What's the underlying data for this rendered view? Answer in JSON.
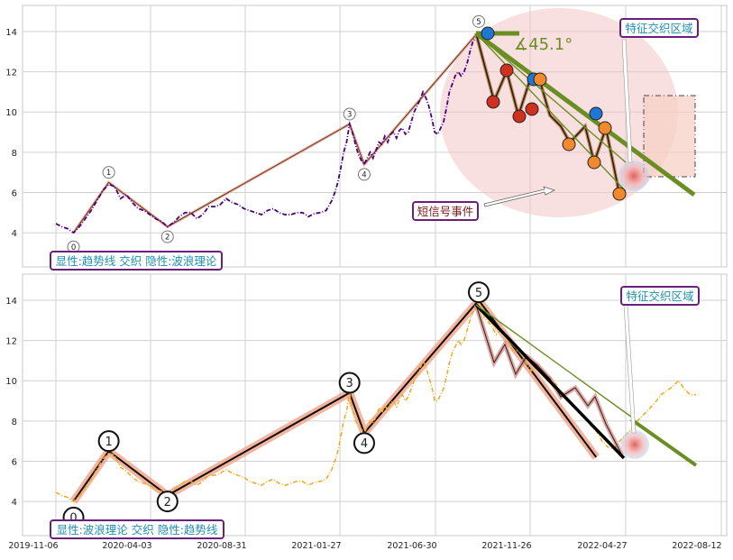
{
  "chart_data": [
    {
      "type": "line",
      "title": "",
      "ylim": [
        2.3,
        15.3
      ],
      "yticks": [
        4,
        6,
        8,
        10,
        12,
        14
      ],
      "grid": true,
      "price_series": {
        "color": "#4b0082",
        "points": [
          [
            0,
            4.45
          ],
          [
            4,
            4.3
          ],
          [
            8,
            4.2
          ],
          [
            12,
            4.0
          ],
          [
            16,
            4.3
          ],
          [
            20,
            4.7
          ],
          [
            24,
            5.1
          ],
          [
            28,
            5.6
          ],
          [
            32,
            6.1
          ],
          [
            36,
            6.4
          ],
          [
            40,
            6.3
          ],
          [
            44,
            5.7
          ],
          [
            48,
            5.9
          ],
          [
            52,
            5.5
          ],
          [
            56,
            5.2
          ],
          [
            60,
            5.1
          ],
          [
            64,
            4.9
          ],
          [
            68,
            4.7
          ],
          [
            72,
            4.55
          ],
          [
            76,
            4.3
          ],
          [
            80,
            4.5
          ],
          [
            84,
            4.8
          ],
          [
            88,
            5.0
          ],
          [
            92,
            5.0
          ],
          [
            96,
            4.7
          ],
          [
            100,
            4.9
          ],
          [
            104,
            5.3
          ],
          [
            108,
            5.3
          ],
          [
            112,
            5.4
          ],
          [
            116,
            5.7
          ],
          [
            120,
            5.5
          ],
          [
            124,
            5.4
          ],
          [
            128,
            5.2
          ],
          [
            132,
            5.1
          ],
          [
            136,
            5.0
          ],
          [
            140,
            4.9
          ],
          [
            144,
            5.1
          ],
          [
            148,
            5.2
          ],
          [
            152,
            5.0
          ],
          [
            156,
            4.9
          ],
          [
            160,
            4.9
          ],
          [
            164,
            5.0
          ],
          [
            168,
            5.0
          ],
          [
            172,
            4.8
          ],
          [
            176,
            4.95
          ],
          [
            180,
            5.0
          ],
          [
            184,
            5.1
          ],
          [
            188,
            5.6
          ],
          [
            190,
            6.0
          ],
          [
            192,
            6.5
          ],
          [
            194,
            7.2
          ],
          [
            196,
            8.0
          ],
          [
            198,
            8.5
          ],
          [
            200,
            9.4
          ],
          [
            202,
            9.0
          ],
          [
            204,
            8.4
          ],
          [
            206,
            7.9
          ],
          [
            208,
            7.6
          ],
          [
            210,
            7.4
          ],
          [
            212,
            7.7
          ],
          [
            214,
            8.0
          ],
          [
            216,
            7.7
          ],
          [
            218,
            8.1
          ],
          [
            220,
            8.5
          ],
          [
            222,
            8.4
          ],
          [
            224,
            8.8
          ],
          [
            226,
            8.5
          ],
          [
            228,
            8.9
          ],
          [
            230,
            9.0
          ],
          [
            232,
            8.7
          ],
          [
            234,
            9.1
          ],
          [
            236,
            9.2
          ],
          [
            238,
            8.9
          ],
          [
            240,
            9.0
          ],
          [
            242,
            9.5
          ],
          [
            244,
            10.0
          ],
          [
            246,
            10.3
          ],
          [
            248,
            10.6
          ],
          [
            250,
            11.0
          ],
          [
            252,
            10.7
          ],
          [
            254,
            10.3
          ],
          [
            256,
            9.7
          ],
          [
            258,
            9.0
          ],
          [
            260,
            8.9
          ],
          [
            262,
            9.2
          ],
          [
            264,
            9.5
          ],
          [
            266,
            10.2
          ],
          [
            268,
            11.0
          ],
          [
            270,
            11.4
          ],
          [
            272,
            11.8
          ],
          [
            274,
            12.0
          ],
          [
            276,
            11.8
          ],
          [
            278,
            12.0
          ],
          [
            280,
            12.4
          ],
          [
            282,
            13.0
          ],
          [
            284,
            13.5
          ],
          [
            286,
            13.7
          ],
          [
            288,
            13.9
          ]
        ]
      },
      "trend_line": [
        [
          12,
          4.0
        ],
        [
          36,
          6.5
        ],
        [
          76,
          4.3
        ],
        [
          200,
          9.4
        ],
        [
          210,
          7.4
        ],
        [
          288,
          14.0
        ]
      ],
      "wave_labels": [
        {
          "label": "0",
          "x": 12,
          "y": 3.3
        },
        {
          "label": "1",
          "x": 36,
          "y": 7.0
        },
        {
          "label": "2",
          "x": 76,
          "y": 3.8
        },
        {
          "label": "3",
          "x": 200,
          "y": 9.9
        },
        {
          "label": "4",
          "x": 210,
          "y": 6.9
        },
        {
          "label": "5",
          "x": 288,
          "y": 14.5
        }
      ],
      "annotations": {
        "angle_label": "∡45.1°",
        "event_label": "短信号事件",
        "zone_label": "特征交织区域",
        "legend_label": "显性:趋势线 交织 隐性:波浪理论"
      }
    },
    {
      "type": "line",
      "title": "",
      "ylim": [
        2.3,
        15.3
      ],
      "yticks": [
        4,
        6,
        8,
        10,
        12,
        14
      ],
      "grid": true,
      "xticks": [
        "2019-11-06",
        "2020-04-03",
        "2020-08-31",
        "2021-01-27",
        "2021-06-30",
        "2021-11-26",
        "2022-04-27",
        "2022-08-12"
      ],
      "price_series": {
        "color": "#f2a91c",
        "points": [
          [
            0,
            4.45
          ],
          [
            4,
            4.3
          ],
          [
            8,
            4.2
          ],
          [
            12,
            4.0
          ],
          [
            16,
            4.3
          ],
          [
            20,
            4.7
          ],
          [
            24,
            5.1
          ],
          [
            28,
            5.6
          ],
          [
            32,
            6.1
          ],
          [
            36,
            6.4
          ],
          [
            40,
            6.3
          ],
          [
            44,
            5.7
          ],
          [
            48,
            5.5
          ],
          [
            52,
            5.2
          ],
          [
            56,
            5.0
          ],
          [
            60,
            4.9
          ],
          [
            64,
            4.8
          ],
          [
            68,
            4.6
          ],
          [
            72,
            4.5
          ],
          [
            76,
            4.4
          ],
          [
            80,
            4.6
          ],
          [
            84,
            4.8
          ],
          [
            88,
            5.0
          ],
          [
            92,
            5.0
          ],
          [
            96,
            4.8
          ],
          [
            100,
            5.0
          ],
          [
            104,
            5.3
          ],
          [
            108,
            5.3
          ],
          [
            112,
            5.4
          ],
          [
            116,
            5.6
          ],
          [
            120,
            5.4
          ],
          [
            124,
            5.3
          ],
          [
            128,
            5.2
          ],
          [
            132,
            5.0
          ],
          [
            136,
            4.9
          ],
          [
            140,
            4.8
          ],
          [
            144,
            5.0
          ],
          [
            148,
            5.1
          ],
          [
            152,
            4.9
          ],
          [
            156,
            4.8
          ],
          [
            160,
            4.9
          ],
          [
            164,
            5.0
          ],
          [
            168,
            5.0
          ],
          [
            172,
            4.8
          ],
          [
            176,
            4.95
          ],
          [
            180,
            5.0
          ],
          [
            184,
            5.1
          ],
          [
            188,
            5.6
          ],
          [
            190,
            6.0
          ],
          [
            192,
            6.5
          ],
          [
            194,
            7.2
          ],
          [
            196,
            8.0
          ],
          [
            198,
            8.5
          ],
          [
            200,
            9.4
          ],
          [
            202,
            8.6
          ],
          [
            204,
            8.0
          ],
          [
            206,
            7.8
          ],
          [
            208,
            7.6
          ],
          [
            210,
            7.4
          ],
          [
            212,
            7.7
          ],
          [
            214,
            8.0
          ],
          [
            216,
            7.9
          ],
          [
            218,
            8.2
          ],
          [
            220,
            8.6
          ],
          [
            222,
            8.4
          ],
          [
            224,
            8.8
          ],
          [
            226,
            8.5
          ],
          [
            228,
            8.9
          ],
          [
            230,
            9.0
          ],
          [
            232,
            8.7
          ],
          [
            234,
            9.1
          ],
          [
            236,
            9.3
          ],
          [
            238,
            9.0
          ],
          [
            240,
            9.2
          ],
          [
            242,
            9.6
          ],
          [
            244,
            10.0
          ],
          [
            246,
            10.3
          ],
          [
            248,
            10.6
          ],
          [
            250,
            11.0
          ],
          [
            252,
            10.7
          ],
          [
            254,
            10.2
          ],
          [
            256,
            9.7
          ],
          [
            258,
            9.0
          ],
          [
            260,
            9.0
          ],
          [
            262,
            9.3
          ],
          [
            264,
            9.6
          ],
          [
            266,
            10.2
          ],
          [
            268,
            10.9
          ],
          [
            270,
            11.4
          ],
          [
            272,
            11.7
          ],
          [
            274,
            12.0
          ],
          [
            276,
            11.8
          ],
          [
            278,
            12.0
          ],
          [
            280,
            12.5
          ],
          [
            282,
            13.0
          ],
          [
            284,
            13.4
          ],
          [
            286,
            13.6
          ],
          [
            288,
            13.9
          ],
          [
            292,
            13.1
          ],
          [
            296,
            12.8
          ],
          [
            300,
            12.3
          ],
          [
            304,
            12.6
          ],
          [
            308,
            11.9
          ],
          [
            312,
            11.4
          ],
          [
            316,
            11.6
          ],
          [
            320,
            10.9
          ],
          [
            324,
            10.5
          ],
          [
            328,
            10.8
          ],
          [
            332,
            10.4
          ],
          [
            336,
            10.2
          ],
          [
            340,
            9.9
          ],
          [
            344,
            9.4
          ],
          [
            348,
            9.0
          ],
          [
            352,
            8.8
          ],
          [
            356,
            8.5
          ],
          [
            360,
            8.2
          ],
          [
            364,
            7.8
          ],
          [
            368,
            7.5
          ],
          [
            372,
            7.0
          ],
          [
            376,
            6.7
          ],
          [
            380,
            6.6
          ],
          [
            384,
            7.0
          ],
          [
            388,
            7.3
          ],
          [
            392,
            7.6
          ],
          [
            396,
            8.0
          ],
          [
            400,
            8.3
          ],
          [
            404,
            8.6
          ],
          [
            408,
            8.9
          ],
          [
            412,
            9.3
          ],
          [
            416,
            9.5
          ],
          [
            420,
            9.7
          ],
          [
            424,
            10.0
          ],
          [
            428,
            9.6
          ],
          [
            432,
            9.3
          ],
          [
            436,
            9.3
          ]
        ]
      },
      "wave_line": [
        [
          12,
          4.0
        ],
        [
          36,
          6.5
        ],
        [
          76,
          4.3
        ],
        [
          200,
          9.4
        ],
        [
          210,
          7.4
        ],
        [
          288,
          14.0
        ],
        [
          368,
          6.2
        ]
      ],
      "wave_labels": [
        {
          "label": "0",
          "x": 12,
          "y": 3.2
        },
        {
          "label": "1",
          "x": 36,
          "y": 7.0
        },
        {
          "label": "2",
          "x": 76,
          "y": 4.0
        },
        {
          "label": "3",
          "x": 200,
          "y": 9.9
        },
        {
          "label": "4",
          "x": 210,
          "y": 6.9
        },
        {
          "label": "5",
          "x": 288,
          "y": 14.4
        }
      ],
      "annotations": {
        "zone_label": "特征交织区域",
        "legend_label": "显性:波浪理论 交织 隐性:趋势线"
      }
    }
  ]
}
